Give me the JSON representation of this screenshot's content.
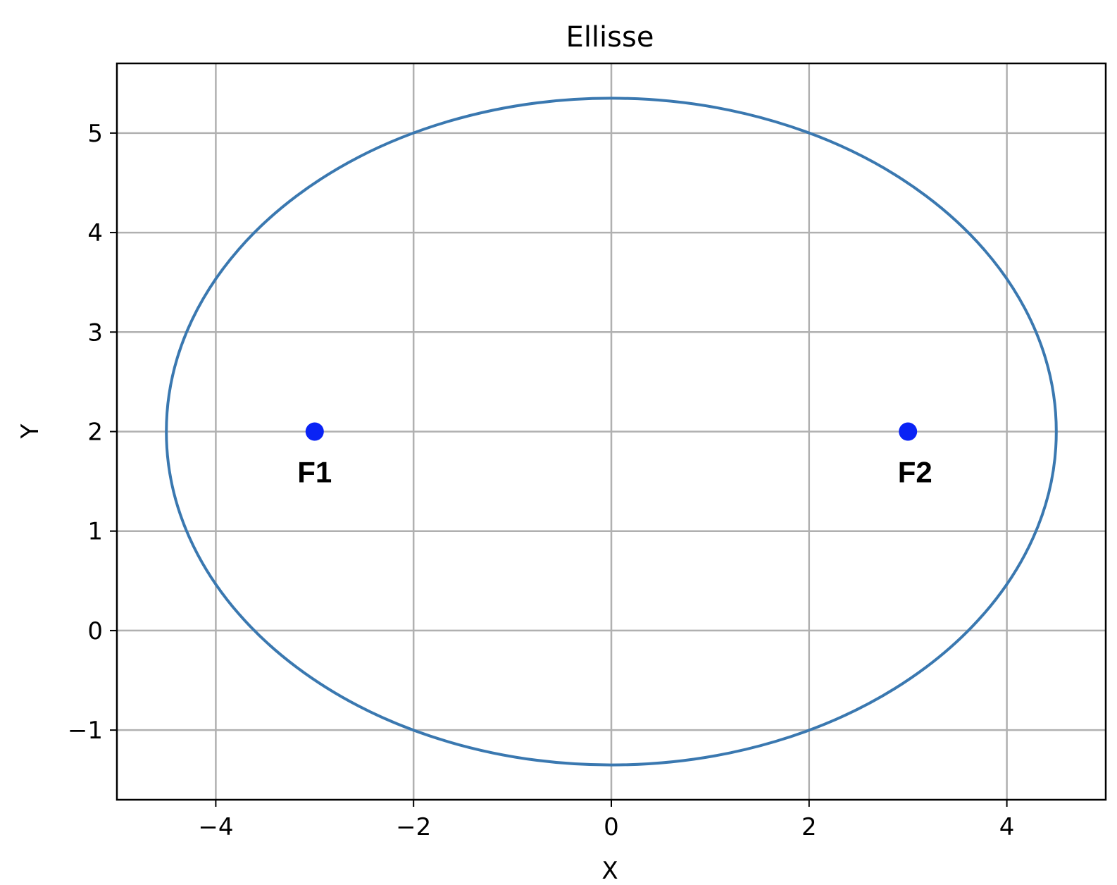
{
  "chart_data": {
    "type": "line",
    "title": "Ellisse",
    "xlabel": "X",
    "ylabel": "Y",
    "xlim": [
      -5,
      5
    ],
    "ylim": [
      -1.7,
      5.7
    ],
    "xticks": [
      -4,
      -2,
      0,
      2,
      4
    ],
    "xtick_labels": [
      "−4",
      "−2",
      "0",
      "2",
      "4"
    ],
    "yticks": [
      -1,
      0,
      1,
      2,
      3,
      4,
      5
    ],
    "ytick_labels": [
      "−1",
      "0",
      "1",
      "2",
      "3",
      "4",
      "5"
    ],
    "grid": true,
    "series": [
      {
        "kind": "ellipse",
        "center": [
          0,
          2
        ],
        "semi_major_axis": 4.5,
        "semi_minor_axis": 3.35,
        "color": "#3a78b0"
      }
    ],
    "points": [
      {
        "label": "F1",
        "x": -3,
        "y": 2,
        "color": "#0a23f5"
      },
      {
        "label": "F2",
        "x": 3,
        "y": 2,
        "color": "#0a23f5"
      }
    ]
  }
}
